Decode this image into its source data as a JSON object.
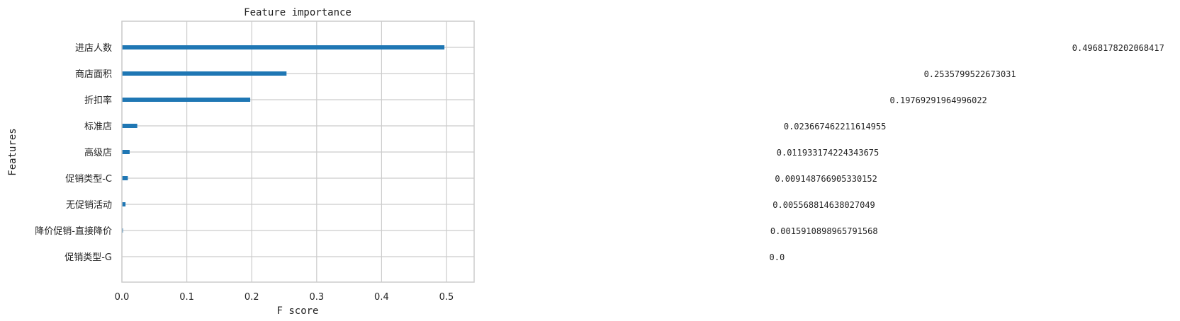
{
  "chart_data": {
    "type": "bar",
    "orientation": "horizontal",
    "title": "Feature importance",
    "xlabel": "F score",
    "ylabel": "Features",
    "xlim": [
      0,
      0.55
    ],
    "xticks": [
      0.0,
      0.1,
      0.2,
      0.3,
      0.4,
      0.5
    ],
    "xtick_labels": [
      "0.0",
      "0.1",
      "0.2",
      "0.3",
      "0.4",
      "0.5"
    ],
    "grid": true,
    "bar_color": "#1f77b4",
    "categories": [
      "进店人数",
      "商店面积",
      "折扣率",
      "标准店",
      "高级店",
      "促销类型-C",
      "无促销活动",
      "降价促销-直接降价",
      "促销类型-G"
    ],
    "values": [
      0.4968178202068417,
      0.2535799522673031,
      0.19769291964996022,
      0.023667462211614955,
      0.011933174224343675,
      0.009148766905330152,
      0.005568814638027049,
      0.0015910898965791568,
      0.0
    ],
    "value_labels": [
      "0.4968178202068417",
      "0.2535799522673031",
      "0.19769291964996022",
      "0.023667462211614955",
      "0.011933174224343675",
      "0.009148766905330152",
      "0.005568814638027049",
      "0.0015910898965791568",
      "0.0"
    ]
  }
}
